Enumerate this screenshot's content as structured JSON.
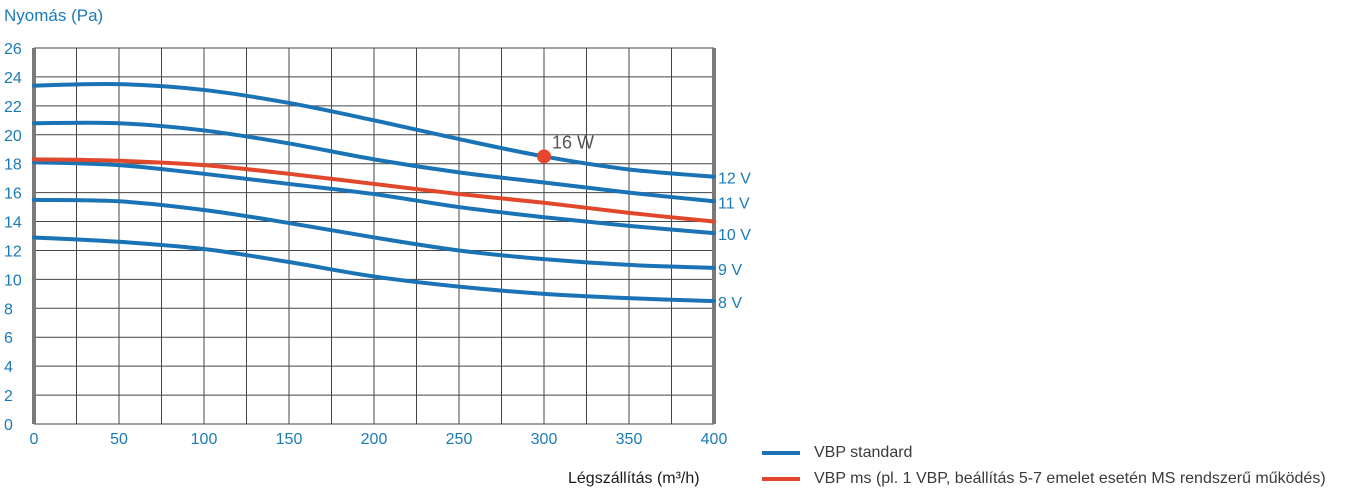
{
  "chart_data": {
    "type": "line",
    "ylabel": "Nyomás (Pa)",
    "xlabel": "Légszállítás (m³/h)",
    "xlim": [
      0,
      400
    ],
    "ylim": [
      0,
      26
    ],
    "x_ticks": [
      0,
      50,
      100,
      150,
      200,
      250,
      300,
      350,
      400
    ],
    "y_ticks": [
      0,
      2,
      4,
      6,
      8,
      10,
      12,
      14,
      16,
      18,
      20,
      22,
      24,
      26
    ],
    "grid": true,
    "x": [
      0,
      50,
      100,
      150,
      200,
      250,
      300,
      350,
      400
    ],
    "series": [
      {
        "name": "12 V",
        "group": "VBP standard",
        "values": [
          23.4,
          23.5,
          23.1,
          22.2,
          21.0,
          19.7,
          18.5,
          17.6,
          17.1
        ]
      },
      {
        "name": "11 V",
        "group": "VBP standard",
        "values": [
          20.8,
          20.8,
          20.3,
          19.4,
          18.3,
          17.4,
          16.7,
          16.0,
          15.4
        ]
      },
      {
        "name": "10 V",
        "group": "VBP standard",
        "values": [
          18.1,
          17.9,
          17.3,
          16.6,
          15.9,
          15.0,
          14.3,
          13.7,
          13.2
        ]
      },
      {
        "name": "9 V",
        "group": "VBP standard",
        "values": [
          15.5,
          15.4,
          14.8,
          13.9,
          12.9,
          12.0,
          11.4,
          11.0,
          10.8
        ]
      },
      {
        "name": "8 V",
        "group": "VBP standard",
        "values": [
          12.9,
          12.6,
          12.1,
          11.2,
          10.2,
          9.5,
          9.0,
          8.7,
          8.5
        ]
      },
      {
        "name": "VBP ms",
        "group": "VBP ms",
        "values": [
          18.3,
          18.2,
          17.9,
          17.3,
          16.6,
          15.9,
          15.3,
          14.6,
          14.0
        ]
      }
    ],
    "annotations": [
      {
        "text": "16 W",
        "x": 300,
        "y": 18.5
      }
    ],
    "legend": {
      "position": "bottom-right",
      "entries": [
        {
          "label": "VBP standard",
          "color": "#1a73b5"
        },
        {
          "label": "VBP ms (pl. 1 VBP, beállítás 5-7 emelet esetén MS rendszerű működés)",
          "color": "#e1482b"
        }
      ]
    },
    "colors": {
      "standard": "#1a73b5",
      "ms": "#e1482b",
      "marker": "#e8452c",
      "tick_text": "#1a7ab8",
      "grid": "#444444",
      "frame": "#7a7a7a"
    }
  }
}
